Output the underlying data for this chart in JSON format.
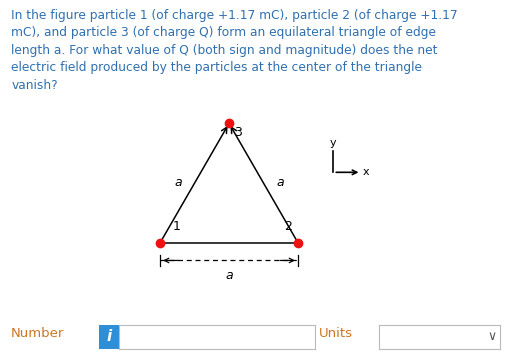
{
  "bg_color": "#ffffff",
  "text_color": "#3070b0",
  "question_text_parts": [
    {
      "text": "In the figure particle 1 (of charge +1.17 mC), particle 2 (of charge +1.17",
      "italic": false
    },
    {
      "text": "mC), and particle 3 (of charge Q) form an equilateral triangle of edge",
      "italic": false
    },
    {
      "text": "length ",
      "italic": false
    },
    {
      "text": "a",
      "italic": true
    },
    {
      "text": ". For what value of Q (both sign and magnitude) does the net",
      "italic": false
    },
    {
      "text": "electric field produced by the particles at the center of the triangle",
      "italic": false
    },
    {
      "text": "vanish?",
      "italic": false
    }
  ],
  "particle_color": "#ee1111",
  "triangle_color": "#000000",
  "number_label": "Number",
  "units_label": "Units",
  "input_box_color": "#2e8fd9",
  "input_icon": "i",
  "number_color": "#cc7722",
  "units_color": "#cc7722"
}
